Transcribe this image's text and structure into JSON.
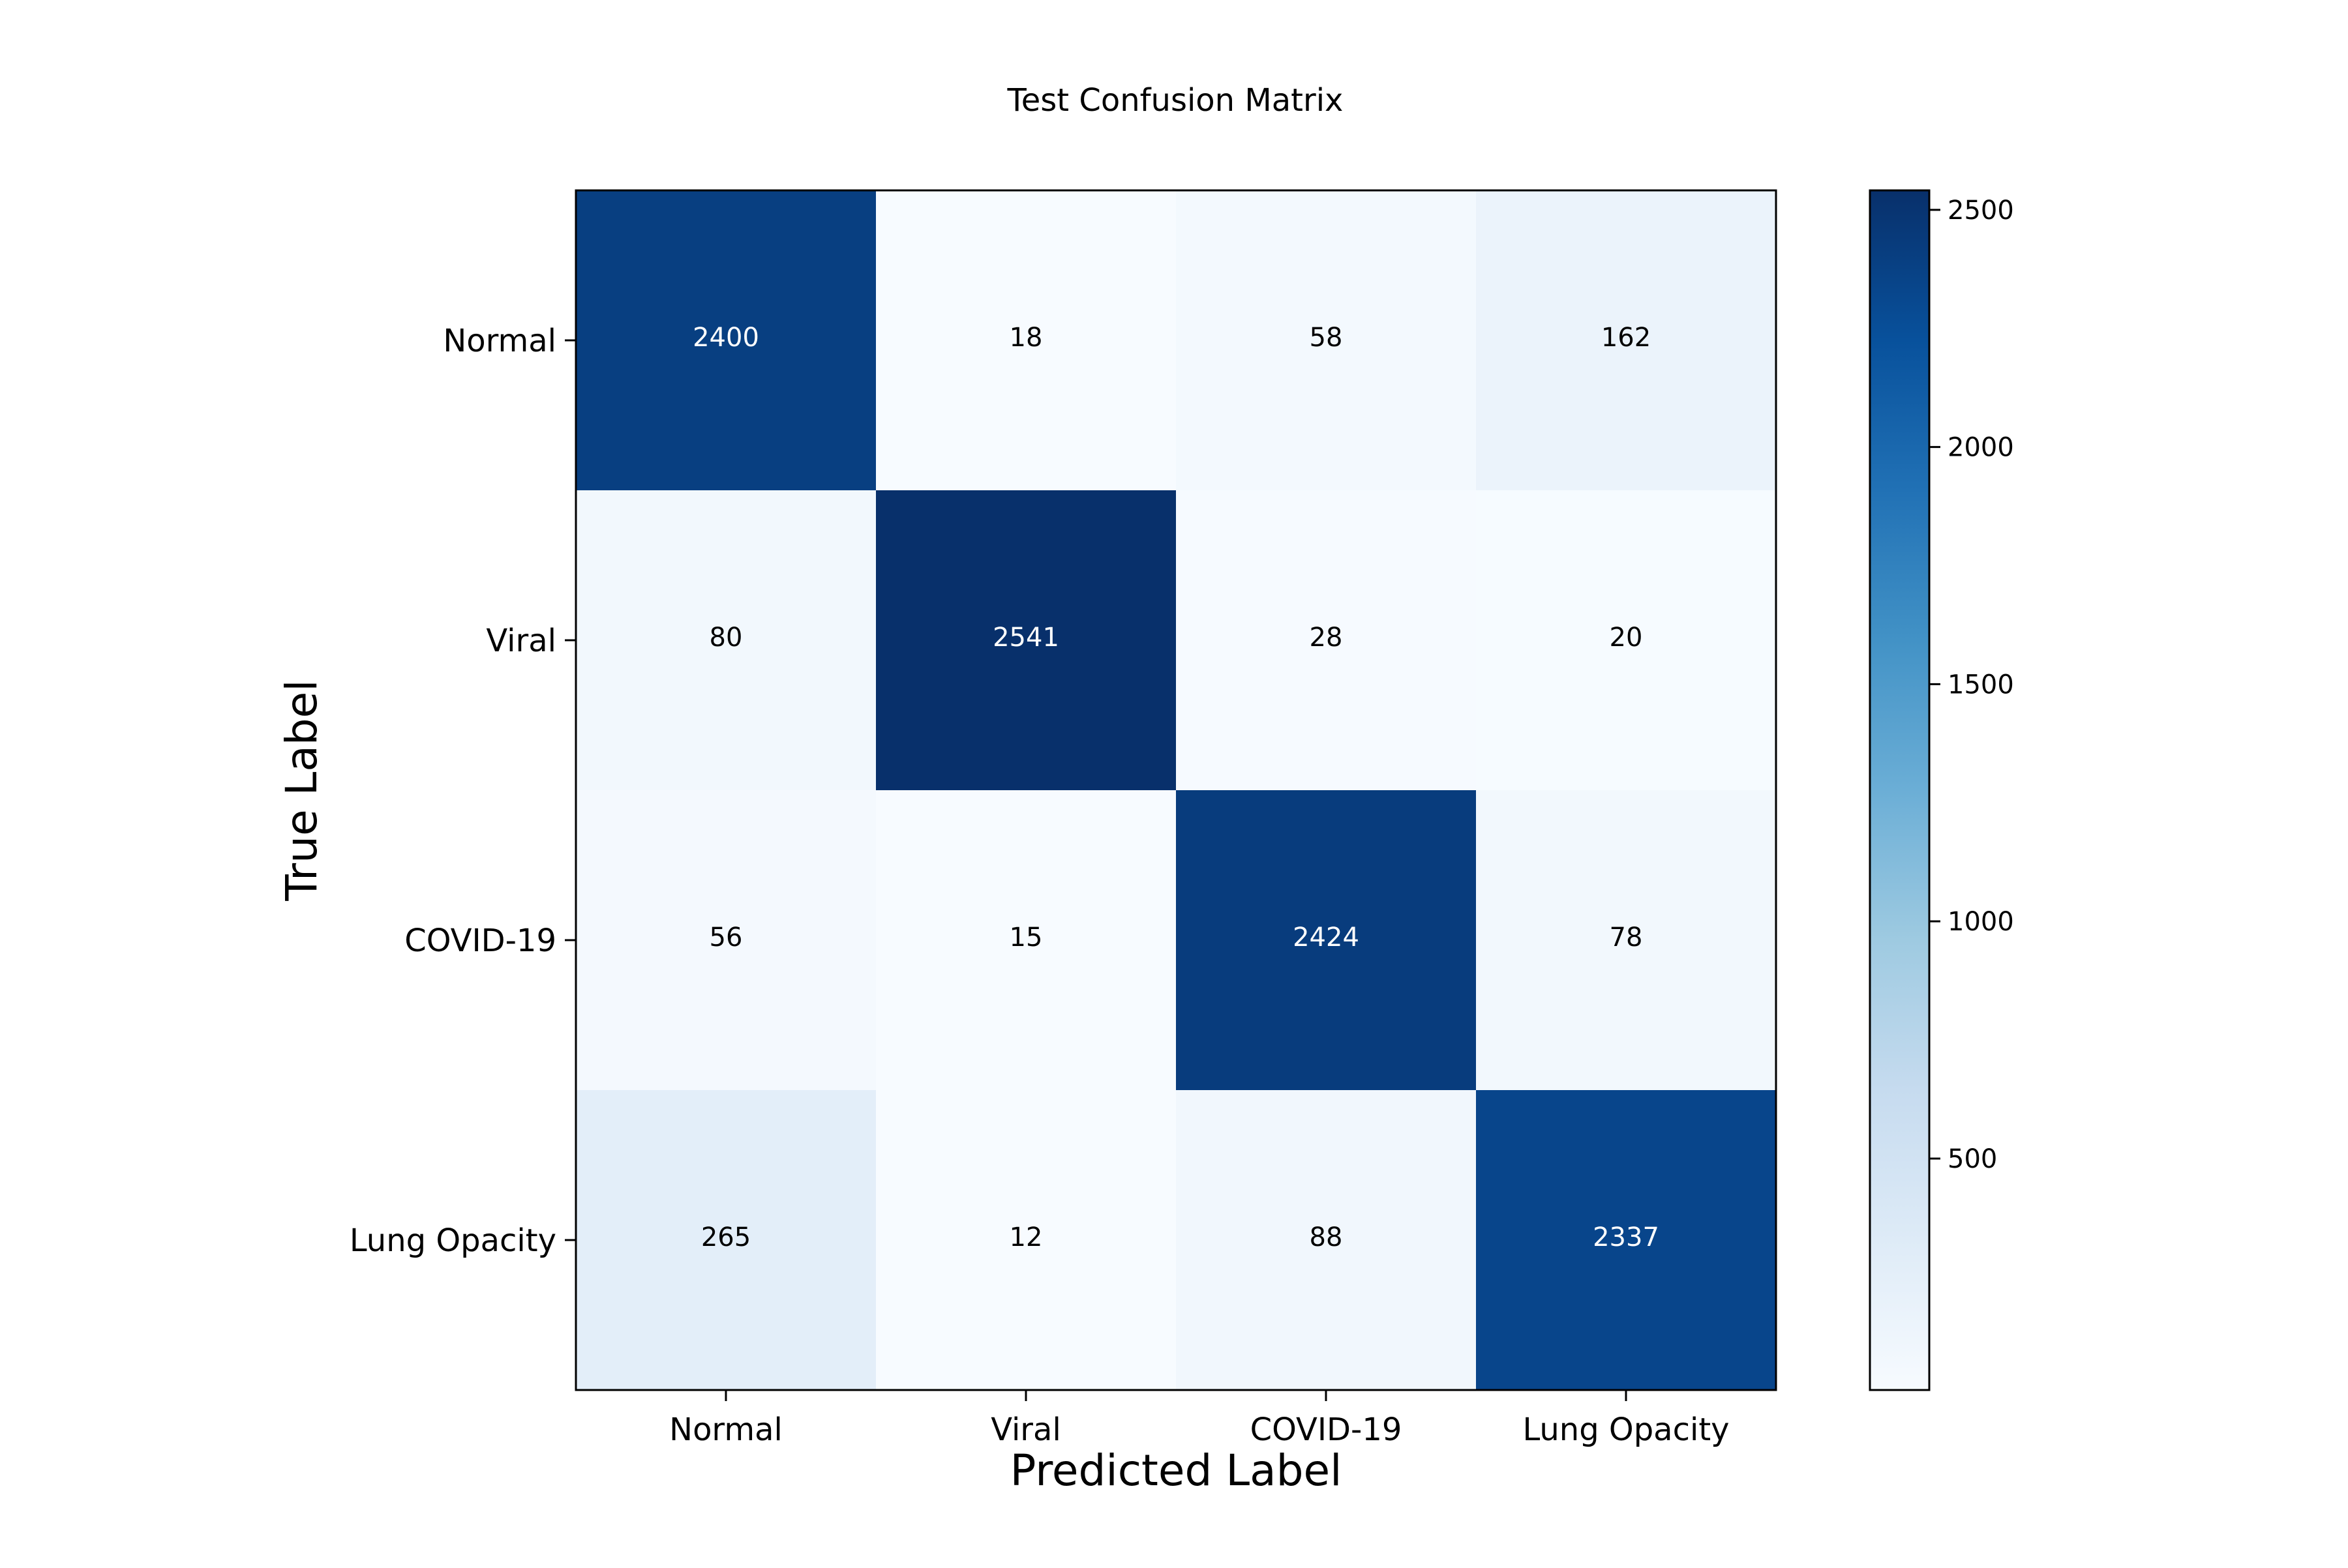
{
  "chart_data": {
    "type": "heatmap",
    "title": "Test Confusion Matrix",
    "xlabel": "Predicted Label",
    "ylabel": "True Label",
    "x_categories": [
      "Normal",
      "Viral",
      "COVID-19",
      "Lung Opacity"
    ],
    "y_categories": [
      "Normal",
      "Viral",
      "COVID-19",
      "Lung Opacity"
    ],
    "matrix": [
      [
        2400,
        18,
        58,
        162
      ],
      [
        80,
        2541,
        28,
        20
      ],
      [
        56,
        15,
        2424,
        78
      ],
      [
        265,
        12,
        88,
        2337
      ]
    ],
    "colormap": "Blues",
    "value_range": [
      12,
      2541
    ],
    "colorbar": {
      "ticks": [
        500,
        1000,
        1500,
        2000,
        2500
      ],
      "tick_labels": [
        "500",
        "1000",
        "1500",
        "2000",
        "2500"
      ]
    },
    "grid": false
  }
}
